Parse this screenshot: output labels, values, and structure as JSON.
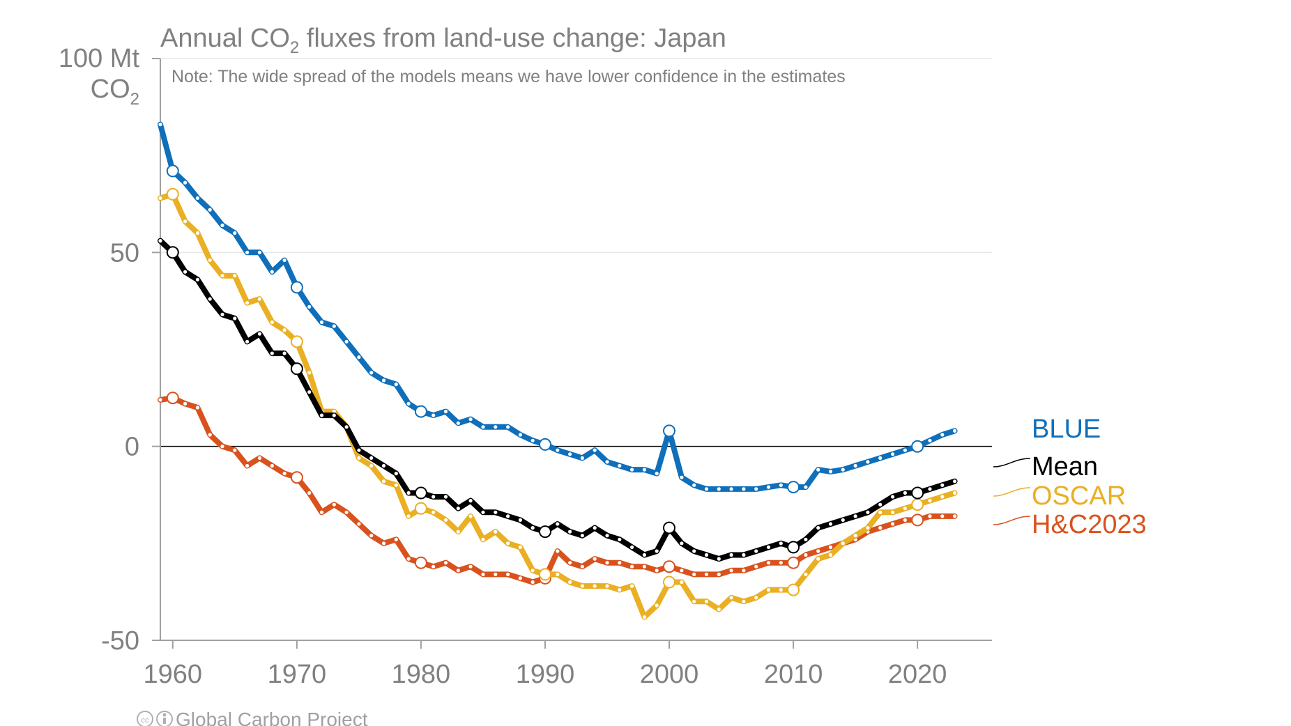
{
  "chart_data": {
    "type": "line",
    "title_main": "Annual CO",
    "title_sub": "2",
    "title_rest": " fluxes from land-use change: Japan",
    "note": "Note: The wide spread of the models means we have lower confidence in the estimates",
    "ylabel_line1": "100 Mt",
    "ylabel_line2_main": "CO",
    "ylabel_line2_sub": "2",
    "xlim": [
      1959,
      2026
    ],
    "ylim": [
      -50,
      100
    ],
    "y_ticks": [
      {
        "value": 50,
        "label": "50"
      },
      {
        "value": 0,
        "label": "0"
      },
      {
        "value": -50,
        "label": "-50"
      }
    ],
    "x_ticks": [
      {
        "value": 1960,
        "label": "1960"
      },
      {
        "value": 1970,
        "label": "1970"
      },
      {
        "value": 1980,
        "label": "1980"
      },
      {
        "value": 1990,
        "label": "1990"
      },
      {
        "value": 2000,
        "label": "2000"
      },
      {
        "value": 2010,
        "label": "2010"
      },
      {
        "value": 2020,
        "label": "2020"
      }
    ],
    "grid": true,
    "legend_position": "right",
    "x_start": 1959,
    "series": [
      {
        "name": "BLUE",
        "color": "#0f6fba",
        "values": [
          83,
          71,
          68,
          64,
          61,
          57,
          55,
          50,
          50,
          45,
          48,
          41,
          36,
          32,
          31,
          27,
          23,
          19,
          17,
          16,
          11,
          9,
          8,
          9,
          6,
          7,
          5,
          5,
          5,
          3,
          1.5,
          0.5,
          -1,
          -2,
          -3,
          -1,
          -4,
          -5,
          -6,
          -6,
          -7,
          4,
          -8,
          -10,
          -11,
          -11,
          -11,
          -11,
          -11,
          -10.5,
          -10,
          -10.5,
          -10.5,
          -6,
          -6.5,
          -6,
          -5,
          -4,
          -3,
          -2,
          -1,
          0,
          1.5,
          3,
          4
        ]
      },
      {
        "name": "Mean",
        "color": "#000000",
        "values": [
          53,
          50,
          45,
          43,
          38,
          34,
          33,
          27,
          29,
          24,
          24,
          20,
          14,
          8,
          8,
          5,
          -1,
          -3,
          -5,
          -7,
          -12,
          -12,
          -13,
          -13,
          -16,
          -14,
          -17,
          -17,
          -18,
          -19,
          -21,
          -22,
          -20,
          -22,
          -23,
          -21,
          -23,
          -24,
          -26,
          -28,
          -27,
          -21,
          -25,
          -27,
          -28,
          -29,
          -28,
          -28,
          -27,
          -26,
          -25,
          -26,
          -24,
          -21,
          -20,
          -19,
          -18,
          -17,
          -15,
          -13,
          -12,
          -12,
          -11,
          -10,
          -9
        ]
      },
      {
        "name": "OSCAR",
        "color": "#eaaf22",
        "values": [
          64,
          65,
          58,
          55,
          48,
          44,
          44,
          37,
          38,
          32,
          30,
          27,
          19,
          9,
          9,
          5,
          -3,
          -5,
          -9,
          -10,
          -18,
          -16,
          -17,
          -19,
          -22,
          -18,
          -24,
          -22,
          -25,
          -26,
          -32,
          -33,
          -33,
          -35,
          -36,
          -36,
          -36,
          -37,
          -36,
          -44,
          -41,
          -35,
          -35,
          -40,
          -40,
          -42,
          -39,
          -40,
          -39,
          -37,
          -37,
          -37,
          -33,
          -29,
          -28,
          -25,
          -23,
          -21,
          -17,
          -17,
          -16,
          -15,
          -14,
          -13,
          -12
        ]
      },
      {
        "name": "H&C2023",
        "color": "#d9521d",
        "values": [
          12,
          12.5,
          11,
          10,
          3,
          0,
          -1,
          -5,
          -3,
          -5,
          -7,
          -8,
          -12,
          -17,
          -15,
          -17,
          -20,
          -23,
          -25,
          -24,
          -29,
          -30,
          -31,
          -30,
          -32,
          -31,
          -33,
          -33,
          -33,
          -34,
          -35,
          -34,
          -27,
          -30,
          -31,
          -29,
          -30,
          -30,
          -31,
          -31,
          -32,
          -31,
          -32,
          -33,
          -33,
          -33,
          -32,
          -32,
          -31,
          -30,
          -30,
          -30,
          -28,
          -27,
          -26,
          -25,
          -24,
          -22,
          -21,
          -20,
          -19,
          -19,
          -18,
          -18,
          -18
        ]
      }
    ],
    "legend": [
      {
        "label": "BLUE",
        "color": "#0f6fba"
      },
      {
        "label": "Mean",
        "color": "#000000"
      },
      {
        "label": "OSCAR",
        "color": "#eaaf22"
      },
      {
        "label": "H&C2023",
        "color": "#d9521d"
      }
    ]
  },
  "footer": {
    "credit": "Global Carbon Project"
  }
}
